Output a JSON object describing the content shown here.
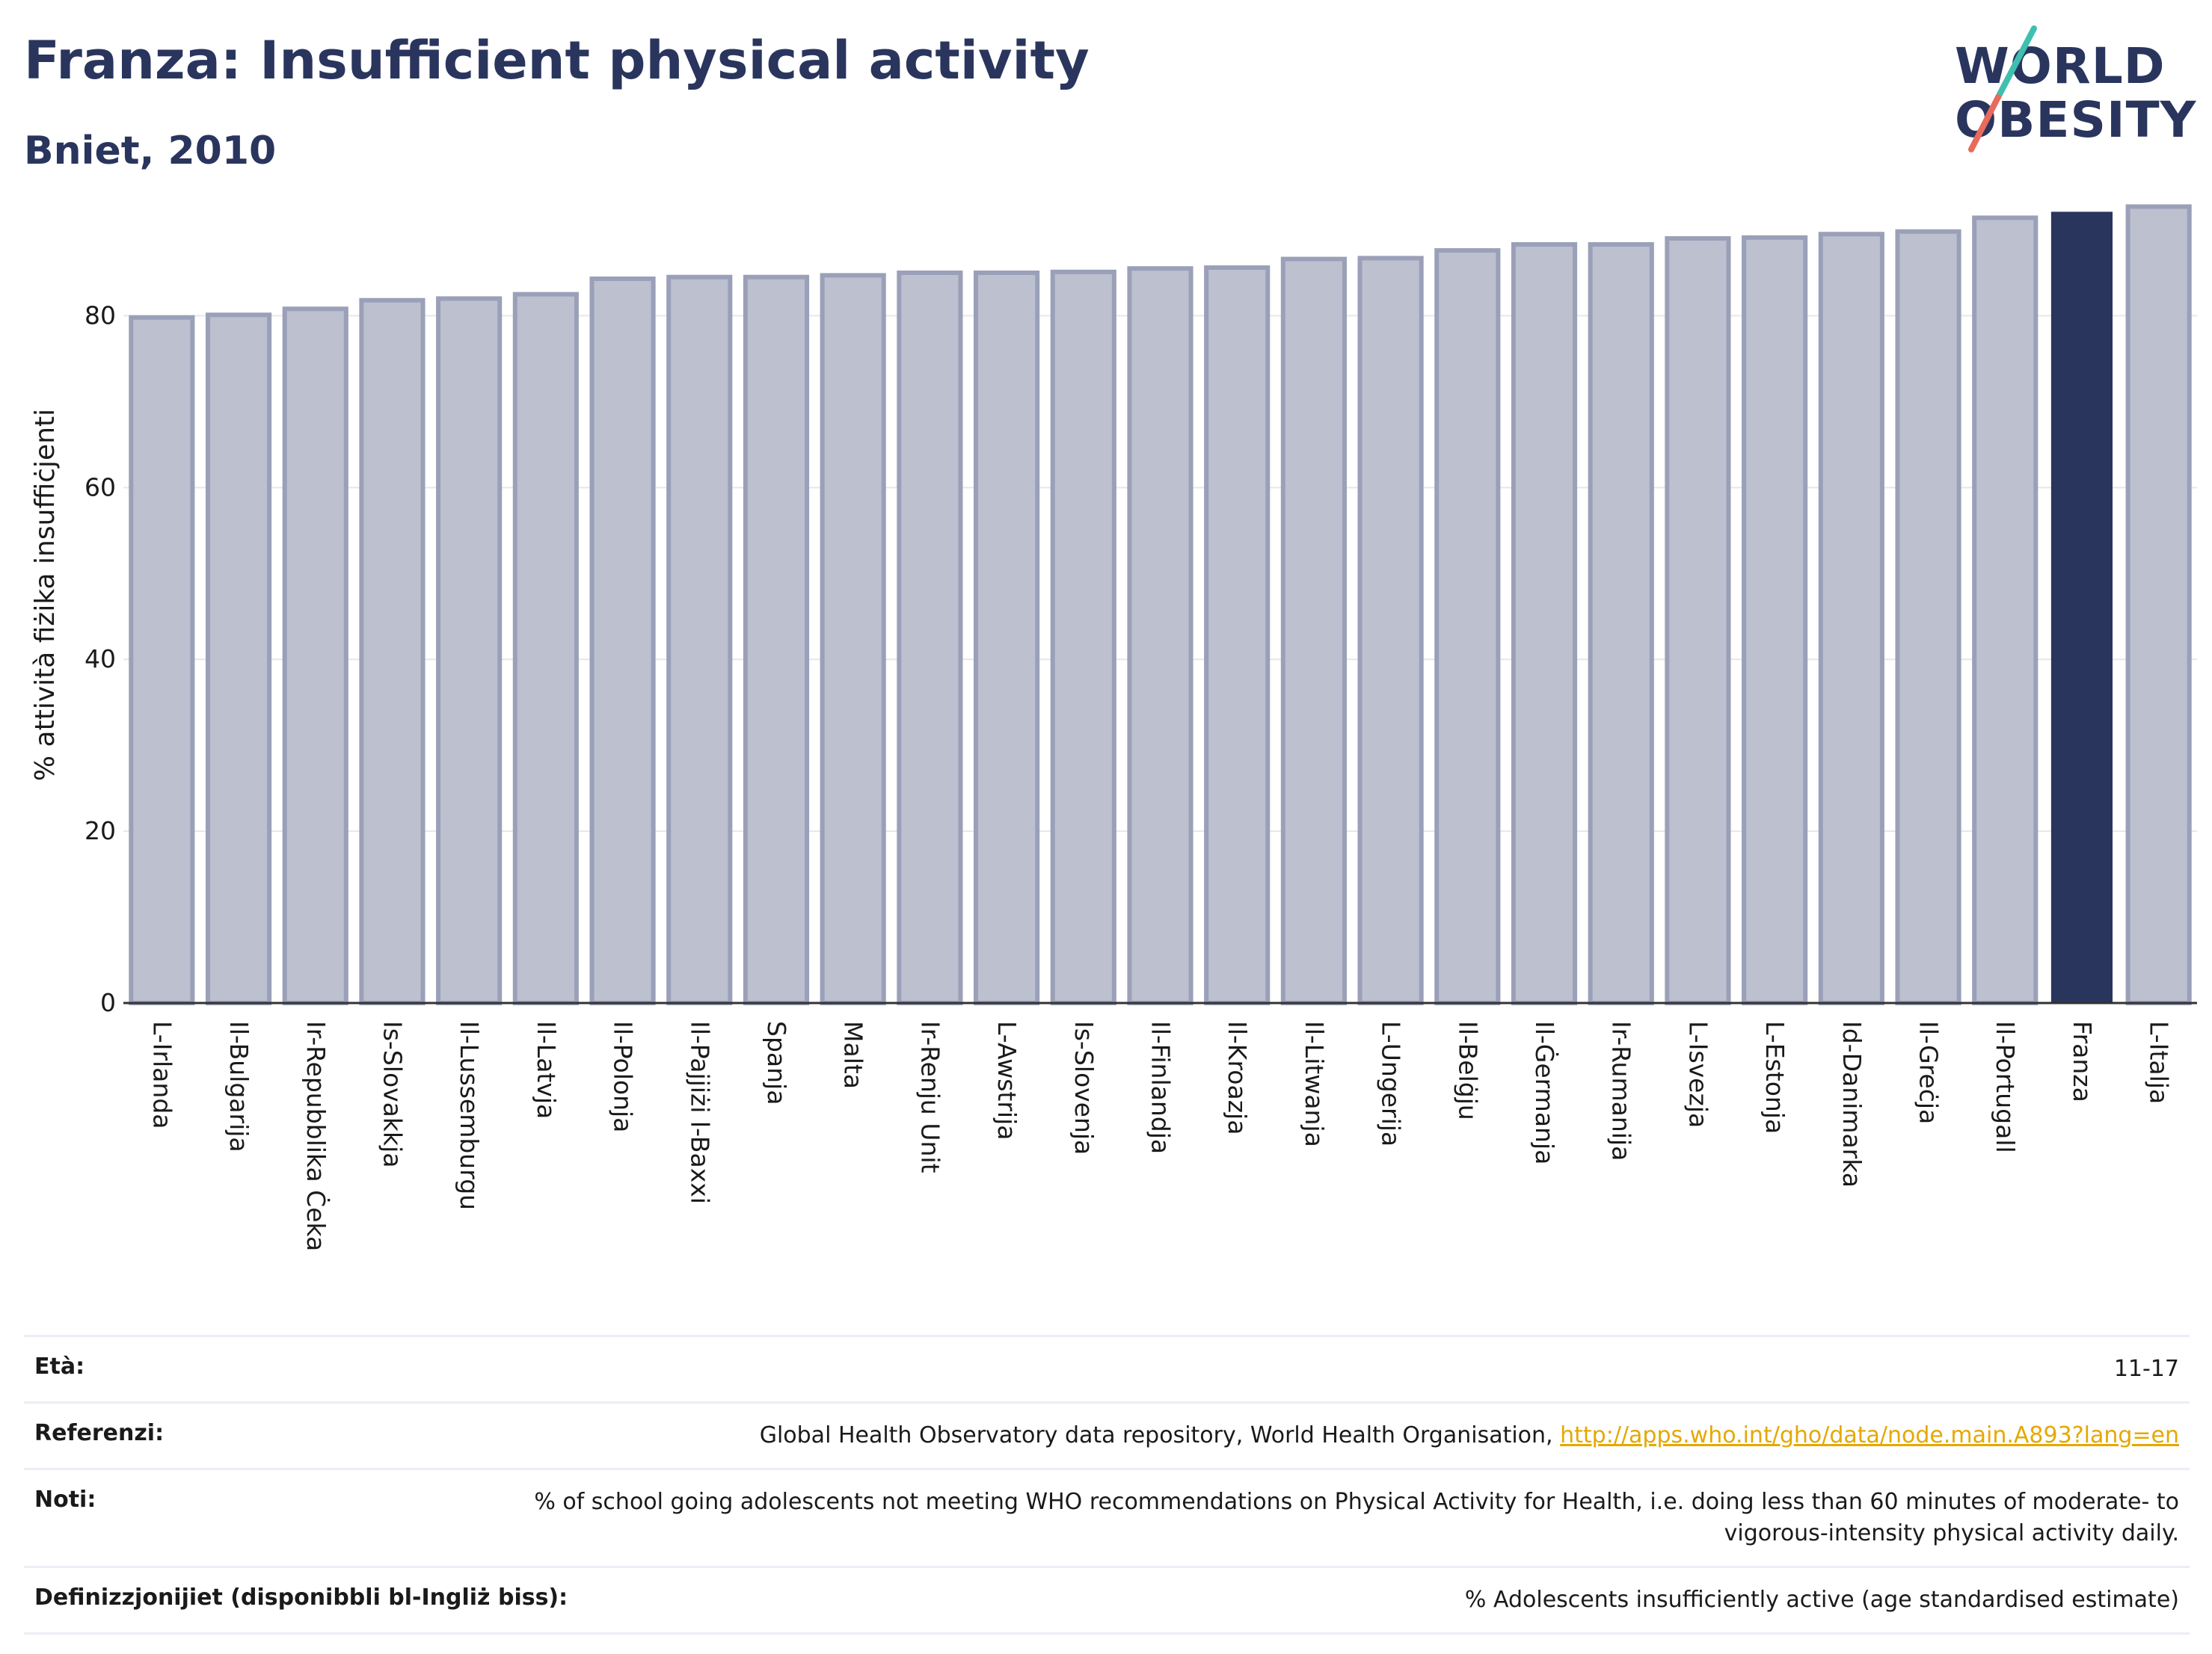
{
  "header": {
    "title": "Franza: Insufficient physical activity",
    "subtitle": "Bniet, 2010"
  },
  "logo": {
    "line1": "WORLD",
    "line2": "OBESITY"
  },
  "colors": {
    "title": "#2a355e",
    "bar": "#bcc0cf",
    "bar_stroke": "#9aa0b8",
    "highlight": "#2a355e",
    "link": "#e5a800"
  },
  "chart_data": {
    "type": "bar",
    "ylabel": "% attività fiżika insuffiċjenti",
    "ylim": [
      0,
      95
    ],
    "yticks": [
      0,
      20,
      40,
      60,
      80
    ],
    "grid": true,
    "highlight": "Franza",
    "categories": [
      "L-Irlanda",
      "Il-Bulgarija",
      "Ir-Repubblika Ċeka",
      "Is-Slovakkja",
      "Il-Lussemburgu",
      "Il-Latvja",
      "Il-Polonja",
      "Il-Pajjiżi l-Baxxi",
      "Spanja",
      "Malta",
      "Ir-Renju Unit",
      "L-Awstrija",
      "Is-Slovenja",
      "Il-Finlandja",
      "Il-Kroazja",
      "Il-Litwanja",
      "L-Ungerija",
      "Il-Belġju",
      "Il-Ġermanja",
      "Ir-Rumanija",
      "L-Isvezja",
      "L-Estonja",
      "Id-Danimarka",
      "Il-Greċja",
      "Il-Portugall",
      "Franza",
      "L-Italja"
    ],
    "values": [
      79.8,
      80.1,
      80.8,
      81.8,
      82.0,
      82.5,
      84.3,
      84.5,
      84.5,
      84.7,
      85.0,
      85.0,
      85.1,
      85.5,
      85.6,
      86.6,
      86.7,
      87.6,
      88.3,
      88.3,
      89.0,
      89.1,
      89.5,
      89.8,
      91.4,
      92.1,
      92.7
    ]
  },
  "footer": {
    "age_label": "Età:",
    "age_value": "11-17",
    "refs_label": "Referenzi:",
    "refs_text": "Global Health Observatory data repository, World Health Organisation,",
    "refs_link": "http://apps.who.int/gho/data/node.main.A893?lang=en",
    "notes_label": "Noti:",
    "notes_text": "% of school going adolescents not meeting WHO recommendations on Physical Activity for Health, i.e. doing less than 60 minutes of moderate- to vigorous-intensity physical activity daily.",
    "defs_label": "Definizzjonijiet (disponibbli bl-Ingliż biss):",
    "defs_text": "% Adolescents insufficiently active (age standardised estimate)"
  }
}
